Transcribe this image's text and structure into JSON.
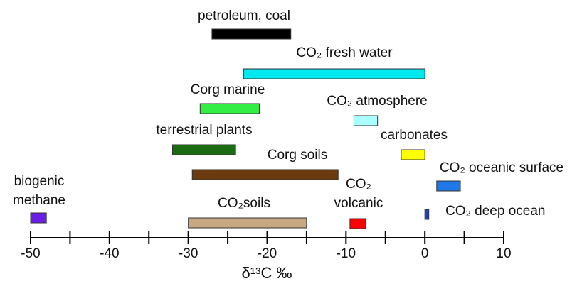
{
  "chart_data": {
    "type": "range",
    "xlabel": "δ¹³C ‰",
    "xlim": [
      -50,
      10
    ],
    "xticks": [
      -50,
      -40,
      -30,
      -20,
      -10,
      0,
      10
    ],
    "xticks_minor": [
      -45,
      -35,
      -25,
      -15,
      -5,
      5
    ],
    "series": [
      {
        "name": "petroleum, coal",
        "color": "#000000",
        "values": [
          -27,
          -17
        ]
      },
      {
        "name": "CO₂ fresh water",
        "color": "#00e8f0",
        "values": [
          -23,
          0
        ]
      },
      {
        "name": "Corg marine",
        "color": "#33ee44",
        "values": [
          -28.5,
          -21
        ]
      },
      {
        "name": "CO₂ atmosphere",
        "color": "#aaffff",
        "values": [
          -9,
          -6
        ]
      },
      {
        "name": "terrestrial plants",
        "color": "#1a6b12",
        "values": [
          -32,
          -24
        ]
      },
      {
        "name": "carbonates",
        "color": "#ffff00",
        "values": [
          -3,
          0
        ]
      },
      {
        "name": "Corg soils",
        "color": "#6b3a10",
        "values": [
          -29.5,
          -11
        ]
      },
      {
        "name": "CO₂ oceanic surface",
        "color": "#1e78e6",
        "values": [
          1.5,
          4.5
        ]
      },
      {
        "name": "biogenic methane",
        "color": "#6a1fe6",
        "values": [
          -50,
          -48
        ]
      },
      {
        "name": "CO₂soils",
        "color": "#c8a882",
        "values": [
          -30,
          -15
        ]
      },
      {
        "name": "CO₂ volcanic",
        "color": "#ff0000",
        "values": [
          -9.5,
          -7.5
        ]
      },
      {
        "name": "CO₂ deep ocean",
        "color": "#1f3fcc",
        "values": [
          0,
          0.5
        ]
      }
    ]
  }
}
